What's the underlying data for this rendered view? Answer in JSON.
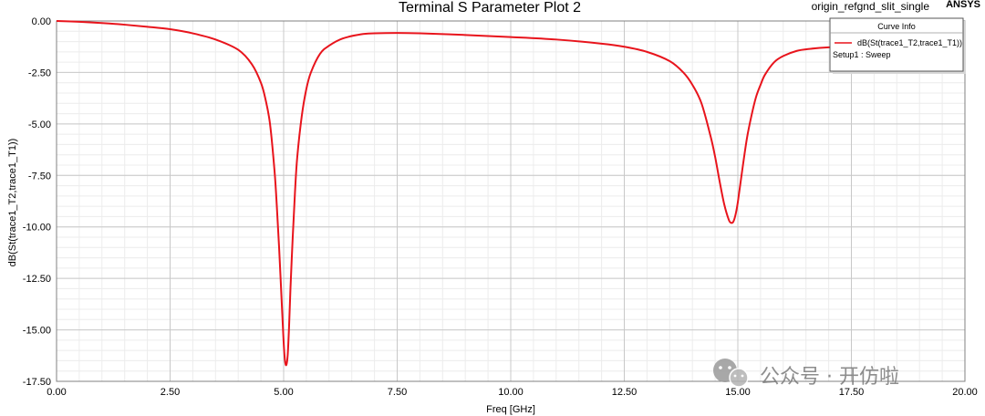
{
  "header": {
    "title": "Terminal S Parameter Plot 2",
    "project": "origin_refgnd_slit_single",
    "brand": "ANSYS"
  },
  "legend": {
    "heading": "Curve Info",
    "entry": "dB(St(trace1_T2,trace1_T1))",
    "setup": "Setup1 : Sweep"
  },
  "watermark": {
    "text": "公众号 · 开仿啦",
    "icon": "wechat-icon"
  },
  "chart_data": {
    "type": "line",
    "title": "Terminal S Parameter Plot 2",
    "xlabel": "Freq [GHz]",
    "ylabel": "dB(St(trace1_T2,trace1_T1))",
    "xlim": [
      0,
      20
    ],
    "ylim": [
      -17.5,
      0
    ],
    "x_ticks": [
      "0.00",
      "2.50",
      "5.00",
      "7.50",
      "10.00",
      "12.50",
      "15.00",
      "17.50",
      "20.00"
    ],
    "y_ticks": [
      "0.00",
      "-2.50",
      "-5.00",
      "-7.50",
      "-10.00",
      "-12.50",
      "-15.00",
      "-17.50"
    ],
    "grid": true,
    "legend_position": "top-right",
    "series": [
      {
        "name": "dB(St(trace1_T2,trace1_T1))",
        "color": "#e8141c",
        "x": [
          0,
          0.5,
          1,
          1.5,
          2,
          2.5,
          3,
          3.5,
          4,
          4.3,
          4.5,
          4.6,
          4.7,
          4.8,
          4.85,
          4.9,
          4.95,
          5.0,
          5.03,
          5.06,
          5.09,
          5.12,
          5.15,
          5.2,
          5.25,
          5.3,
          5.4,
          5.5,
          5.6,
          5.8,
          6.0,
          6.3,
          6.7,
          7.0,
          7.5,
          8.0,
          9.0,
          10.0,
          11.0,
          12.0,
          12.5,
          13.0,
          13.5,
          13.8,
          14.0,
          14.2,
          14.4,
          14.5,
          14.6,
          14.7,
          14.8,
          14.85,
          14.9,
          14.95,
          15.0,
          15.1,
          15.2,
          15.3,
          15.4,
          15.5,
          15.6,
          15.8,
          16.0,
          16.3,
          16.6,
          17.0,
          17.5,
          18.0,
          18.5
        ],
        "y": [
          0,
          -0.04,
          -0.1,
          -0.18,
          -0.28,
          -0.4,
          -0.6,
          -0.9,
          -1.4,
          -2.1,
          -3.0,
          -3.8,
          -5.0,
          -7.3,
          -9.0,
          -11.0,
          -13.3,
          -15.6,
          -16.5,
          -16.7,
          -16.2,
          -14.8,
          -13.0,
          -10.5,
          -8.3,
          -6.6,
          -4.6,
          -3.3,
          -2.5,
          -1.6,
          -1.2,
          -0.85,
          -0.65,
          -0.6,
          -0.58,
          -0.6,
          -0.68,
          -0.78,
          -0.9,
          -1.1,
          -1.25,
          -1.5,
          -1.95,
          -2.5,
          -3.1,
          -4.0,
          -5.6,
          -6.6,
          -7.8,
          -8.9,
          -9.65,
          -9.8,
          -9.75,
          -9.4,
          -8.8,
          -7.2,
          -5.7,
          -4.6,
          -3.7,
          -3.1,
          -2.6,
          -2.0,
          -1.7,
          -1.45,
          -1.35,
          -1.28,
          -1.25,
          -1.2,
          -1.15
        ]
      }
    ]
  }
}
